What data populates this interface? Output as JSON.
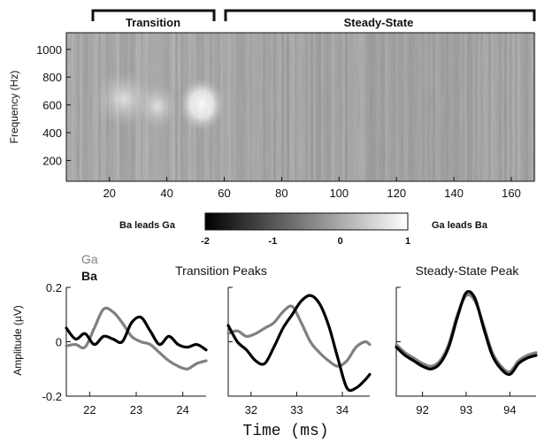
{
  "chart_data": [
    {
      "type": "heatmap",
      "ylabel": "Frequency (Hz)",
      "x_ticks": [
        "20",
        "40",
        "60",
        "80",
        "100",
        "120",
        "140",
        "160"
      ],
      "y_ticks": [
        "1000",
        "800",
        "600",
        "400",
        "200"
      ],
      "xlim": [
        5,
        168
      ],
      "ylim": [
        50,
        1120
      ],
      "section_labels": [
        "Transition",
        "Steady-State"
      ],
      "sections": [
        {
          "label": "Transition",
          "x_range": [
            14,
            55
          ]
        },
        {
          "label": "Steady-State",
          "x_range": [
            57,
            168
          ]
        }
      ],
      "hotspots": [
        {
          "x": 50,
          "y": 620,
          "value": 1.0
        },
        {
          "x": 24,
          "y": 620,
          "value": 0.6
        },
        {
          "x": 36,
          "y": 580,
          "value": 0.5
        }
      ],
      "colorbar": {
        "left_label": "Ba leads Ga",
        "right_label": "Ga leads Ba",
        "ticks": [
          "-2",
          "-1",
          "0",
          "1"
        ],
        "range": [
          -2,
          1
        ],
        "colors": [
          "#000000",
          "#ffffff"
        ]
      }
    },
    {
      "type": "line",
      "group_title": "Transition Peaks",
      "ylabel": "Amplitude (µV)",
      "y_ticks": [
        "0.2",
        "0",
        "-0.2"
      ],
      "ylim": [
        -0.2,
        0.2
      ],
      "xlim": [
        21.5,
        24.5
      ],
      "x_ticks": [
        "22",
        "23",
        "24"
      ],
      "series": [
        {
          "name": "Ga",
          "color": "#808080",
          "x": [
            21.5,
            21.7,
            21.9,
            22.1,
            22.3,
            22.5,
            22.7,
            22.9,
            23.1,
            23.3,
            23.5,
            23.7,
            23.9,
            24.1,
            24.3,
            24.5
          ],
          "y": [
            -0.015,
            -0.01,
            -0.02,
            0.05,
            0.12,
            0.11,
            0.07,
            0.02,
            0.0,
            -0.01,
            -0.04,
            -0.07,
            -0.09,
            -0.1,
            -0.08,
            -0.07
          ]
        },
        {
          "name": "Ba",
          "color": "#000000",
          "x": [
            21.5,
            21.7,
            21.9,
            22.1,
            22.3,
            22.5,
            22.7,
            22.9,
            23.1,
            23.3,
            23.5,
            23.7,
            23.9,
            24.1,
            24.3,
            24.5
          ],
          "y": [
            0.05,
            0.01,
            0.03,
            -0.01,
            0.02,
            0.01,
            0.0,
            0.07,
            0.09,
            0.04,
            -0.01,
            0.02,
            -0.01,
            -0.02,
            -0.01,
            -0.03
          ]
        }
      ]
    },
    {
      "type": "line",
      "xlim": [
        31.5,
        34.6
      ],
      "x_ticks": [
        "32",
        "33",
        "34"
      ],
      "ylim": [
        -0.2,
        0.2
      ],
      "series": [
        {
          "name": "Ga",
          "color": "#808080",
          "x": [
            31.5,
            31.7,
            31.9,
            32.1,
            32.3,
            32.5,
            32.7,
            32.9,
            33.1,
            33.3,
            33.5,
            33.7,
            33.9,
            34.1,
            34.3,
            34.5,
            34.6
          ],
          "y": [
            0.03,
            0.04,
            0.02,
            0.03,
            0.05,
            0.07,
            0.11,
            0.13,
            0.07,
            0.0,
            -0.04,
            -0.07,
            -0.09,
            -0.07,
            -0.02,
            0.0,
            -0.01
          ]
        },
        {
          "name": "Ba",
          "color": "#000000",
          "x": [
            31.5,
            31.7,
            31.9,
            32.1,
            32.3,
            32.5,
            32.7,
            32.9,
            33.1,
            33.3,
            33.5,
            33.7,
            33.9,
            34.1,
            34.3,
            34.5,
            34.6
          ],
          "y": [
            0.06,
            0.0,
            -0.03,
            -0.07,
            -0.08,
            -0.02,
            0.05,
            0.1,
            0.15,
            0.17,
            0.14,
            0.06,
            -0.06,
            -0.17,
            -0.17,
            -0.14,
            -0.12
          ]
        }
      ]
    },
    {
      "type": "line",
      "group_title": "Steady-State Peak",
      "xlim": [
        91.4,
        94.6
      ],
      "x_ticks": [
        "92",
        "93",
        "94"
      ],
      "ylim": [
        -0.2,
        0.2
      ],
      "series": [
        {
          "name": "Ga",
          "color": "#808080",
          "x": [
            91.4,
            91.6,
            91.8,
            92.0,
            92.2,
            92.4,
            92.6,
            92.8,
            93.0,
            93.2,
            93.4,
            93.6,
            93.8,
            94.0,
            94.2,
            94.4,
            94.6
          ],
          "y": [
            -0.01,
            -0.04,
            -0.06,
            -0.08,
            -0.09,
            -0.07,
            -0.01,
            0.1,
            0.17,
            0.15,
            0.06,
            -0.04,
            -0.09,
            -0.11,
            -0.07,
            -0.05,
            -0.04
          ]
        },
        {
          "name": "Ba",
          "color": "#000000",
          "x": [
            91.4,
            91.6,
            91.8,
            92.0,
            92.2,
            92.4,
            92.6,
            92.8,
            93.0,
            93.2,
            93.4,
            93.6,
            93.8,
            94.0,
            94.2,
            94.4,
            94.6
          ],
          "y": [
            -0.02,
            -0.05,
            -0.07,
            -0.09,
            -0.1,
            -0.08,
            -0.02,
            0.09,
            0.18,
            0.16,
            0.05,
            -0.05,
            -0.1,
            -0.12,
            -0.08,
            -0.06,
            -0.05
          ]
        }
      ]
    }
  ],
  "xlabel": "Time (ms)"
}
